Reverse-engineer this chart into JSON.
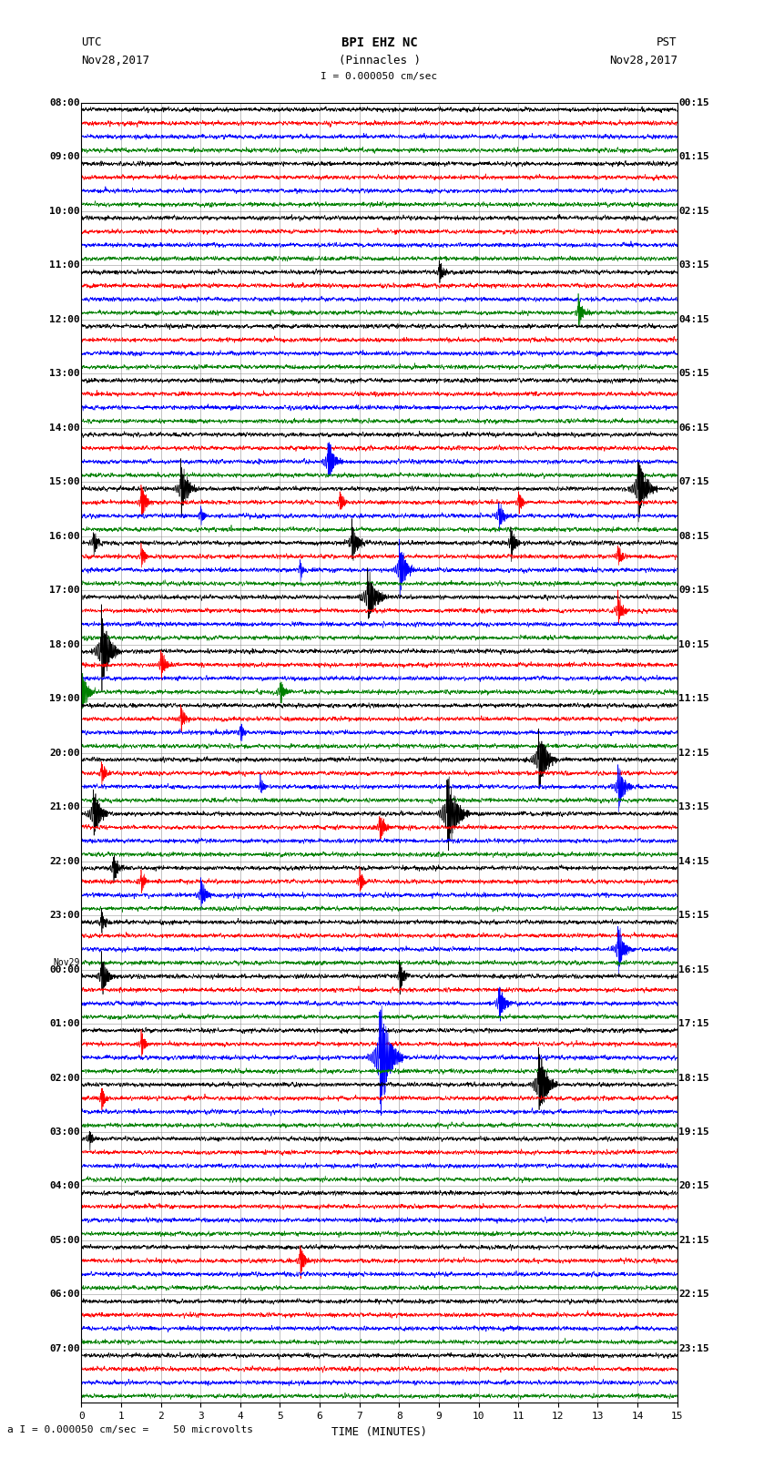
{
  "title_line1": "BPI EHZ NC",
  "title_line2": "(Pinnacles )",
  "scale_text": "I = 0.000050 cm/sec",
  "left_label_1": "UTC",
  "left_label_2": "Nov28,2017",
  "right_label_1": "PST",
  "right_label_2": "Nov28,2017",
  "bottom_label": "TIME (MINUTES)",
  "scale_note": "a I = 0.000050 cm/sec =    50 microvolts",
  "utc_times": [
    "08:00",
    "09:00",
    "10:00",
    "11:00",
    "12:00",
    "13:00",
    "14:00",
    "15:00",
    "16:00",
    "17:00",
    "18:00",
    "19:00",
    "20:00",
    "21:00",
    "22:00",
    "23:00",
    "00:00",
    "01:00",
    "02:00",
    "03:00",
    "04:00",
    "05:00",
    "06:00",
    "07:00"
  ],
  "utc_times_special": [
    16
  ],
  "pst_times": [
    "00:15",
    "01:15",
    "02:15",
    "03:15",
    "04:15",
    "05:15",
    "06:15",
    "07:15",
    "08:15",
    "09:15",
    "10:15",
    "11:15",
    "12:15",
    "13:15",
    "14:15",
    "15:15",
    "16:15",
    "17:15",
    "18:15",
    "19:15",
    "20:15",
    "21:15",
    "22:15",
    "23:15"
  ],
  "n_rows": 24,
  "n_traces_per_row": 4,
  "trace_colors": [
    "black",
    "red",
    "blue",
    "green"
  ],
  "background_color": "white",
  "grid_color": "#888888",
  "figsize": [
    8.5,
    16.13
  ],
  "dpi": 100,
  "xmin": 0,
  "xmax": 15,
  "xticks": [
    0,
    1,
    2,
    3,
    4,
    5,
    6,
    7,
    8,
    9,
    10,
    11,
    12,
    13,
    14,
    15
  ],
  "noise_sigma": 0.5,
  "noise_amp": 0.08,
  "trace_amp_scale": 0.28
}
